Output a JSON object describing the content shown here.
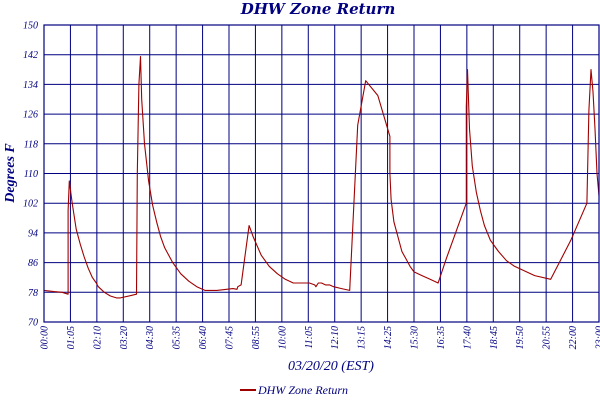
{
  "chart_data": {
    "type": "line",
    "title": "DHW Zone Return",
    "xlabel": "03/20/20 (EST)",
    "ylabel": "Degrees F",
    "ylim": [
      70,
      150
    ],
    "xlim": [
      0,
      1380
    ],
    "y_ticks": [
      "150",
      "142",
      "134",
      "126",
      "118",
      "110",
      "102",
      "94",
      "86",
      "78",
      "70"
    ],
    "x_ticks": [
      "00:00",
      "01:05",
      "02:10",
      "03:20",
      "04:30",
      "05:35",
      "06:40",
      "07:45",
      "08:55",
      "10:00",
      "11:05",
      "12:10",
      "13:15",
      "14:25",
      "15:30",
      "16:35",
      "17:40",
      "18:45",
      "19:50",
      "20:55",
      "22:00",
      "23:00"
    ],
    "grid": true,
    "legend": "bottom-center",
    "line_color": "#a00000",
    "grid_color": "#000080",
    "series": [
      {
        "name": "DHW Zone Return",
        "x": [
          0,
          25,
          45,
          60,
          60,
          63,
          70,
          80,
          90,
          100,
          110,
          120,
          130,
          135,
          150,
          165,
          180,
          190,
          230,
          232,
          236,
          240,
          243,
          250,
          260,
          270,
          280,
          290,
          300,
          320,
          340,
          360,
          380,
          400,
          430,
          470,
          480,
          482,
          490,
          495,
          500,
          510,
          520,
          540,
          560,
          580,
          600,
          620,
          660,
          673,
          676,
          682,
          690,
          700,
          710,
          720,
          740,
          760,
          780,
          800,
          830,
          860,
          860,
          863,
          870,
          880,
          890,
          900,
          910,
          920,
          940,
          960,
          980,
          1000,
          1050,
          1050,
          1053,
          1058,
          1065,
          1075,
          1085,
          1095,
          1110,
          1130,
          1150,
          1170,
          1200,
          1220,
          1260,
          1310,
          1350,
          1352,
          1355,
          1360,
          1365,
          1370,
          1375,
          1380
        ],
        "y": [
          78.5,
          78.2,
          78.0,
          77.5,
          100,
          108,
          102,
          95,
          91,
          87.5,
          84.5,
          82,
          80.5,
          79.5,
          78,
          77,
          76.5,
          76.5,
          77.5,
          110,
          134,
          141.5,
          130,
          118,
          108,
          101.5,
          97,
          93,
          90,
          86,
          83,
          81,
          79.5,
          78.5,
          78.5,
          79,
          78.8,
          79.5,
          80,
          84,
          88,
          96,
          93,
          88,
          85,
          83,
          81.5,
          80.5,
          80.5,
          80,
          79.5,
          80.5,
          80.5,
          80,
          80,
          79.5,
          79,
          78.5,
          123,
          135,
          131,
          120,
          110,
          103,
          97,
          93,
          89,
          87,
          85,
          83.5,
          82.5,
          81.5,
          80.5,
          87,
          102,
          128,
          138,
          122,
          112,
          105,
          100,
          96,
          92,
          89,
          86.5,
          85,
          83.5,
          82.5,
          81.5,
          92,
          102,
          112,
          127,
          138,
          132,
          122,
          110,
          104
        ]
      }
    ]
  }
}
